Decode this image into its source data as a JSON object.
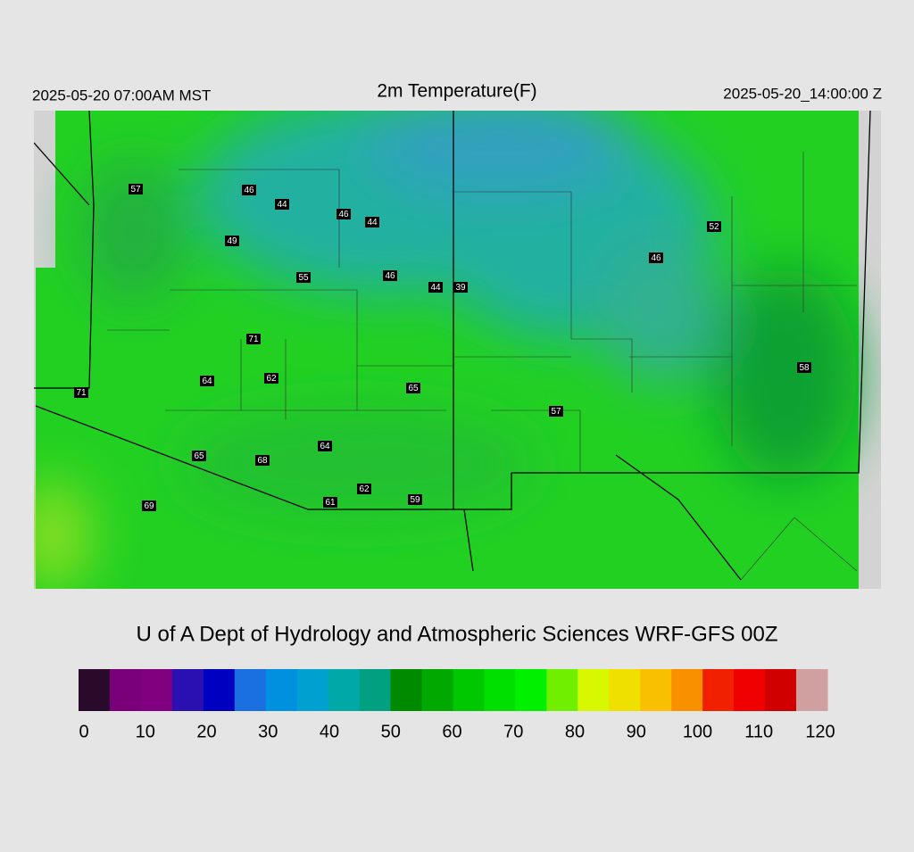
{
  "header": {
    "left": "2025-05-20 07:00AM MST",
    "title": "2m Temperature(F)",
    "right": "2025-05-20_14:00:00 Z"
  },
  "stations": [
    57,
    46,
    44,
    46,
    44,
    49,
    55,
    46,
    44,
    39,
    52,
    46,
    71,
    64,
    62,
    65,
    58,
    57,
    71,
    65,
    68,
    64,
    62,
    61,
    59,
    69
  ],
  "footer": "U of A Dept of Hydrology and Atmospheric Sciences WRF-GFS 00Z",
  "colorbar": {
    "range": [
      0,
      120
    ],
    "ticks": [
      0,
      10,
      20,
      30,
      40,
      50,
      60,
      70,
      80,
      90,
      100,
      110,
      120
    ],
    "colors": [
      "#2a0a2a",
      "#7a007a",
      "#800080",
      "#2a10b0",
      "#0000c0",
      "#1a70e0",
      "#0090e0",
      "#00a0d0",
      "#00a8a8",
      "#00a080",
      "#008a00",
      "#00a800",
      "#00c800",
      "#00e000",
      "#00f000",
      "#70f000",
      "#d8f800",
      "#f0e000",
      "#f8c000",
      "#f89000",
      "#f02000",
      "#f00000",
      "#d00000",
      "#d0a0a0"
    ]
  }
}
